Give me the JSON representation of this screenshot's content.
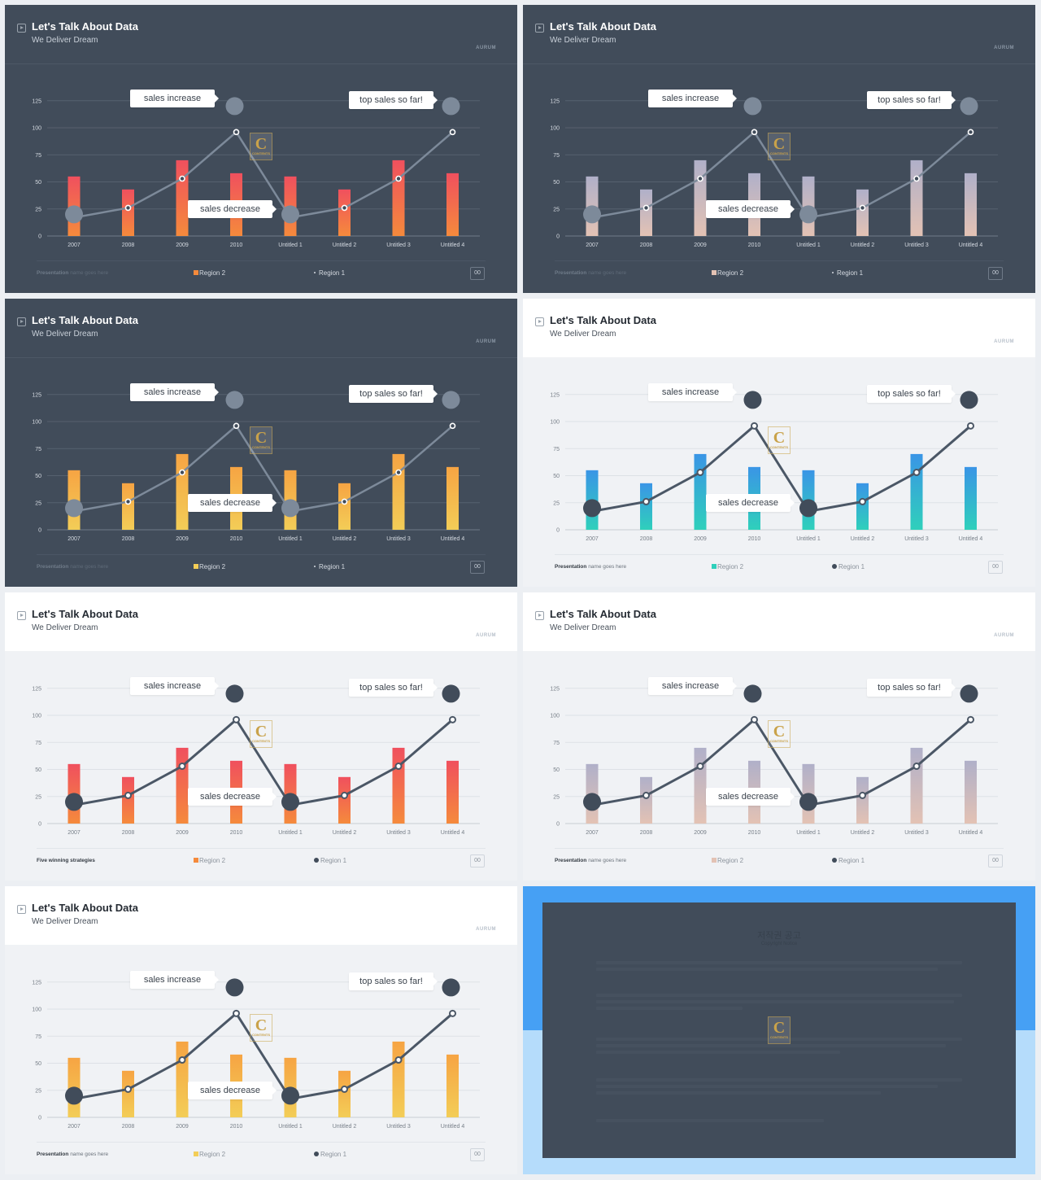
{
  "deck": {
    "title": "Let's Talk About Data",
    "subtitle": "We Deliver Dream",
    "brand": "AURUM",
    "logo_letter": "C",
    "logo_text": "CONTENTS",
    "callouts": {
      "increase": "sales increase",
      "top": "top sales so far!",
      "decrease": "sales decrease"
    },
    "legend": {
      "bars": "Region 2",
      "line": "Region 1"
    },
    "footer": {
      "bold": "Presentation",
      "rest": "name goes here",
      "alt_bold": "Five winning strategies"
    },
    "page_number": "00"
  },
  "slides": [
    {
      "theme": "dark",
      "bar_colors": [
        "#f0505e",
        "#f58a3c"
      ]
    },
    {
      "theme": "dark",
      "bar_colors": [
        "#b0b0c9",
        "#e3c2b4"
      ]
    },
    {
      "theme": "dark",
      "bar_colors": [
        "#f6a443",
        "#f3cd57"
      ]
    },
    {
      "theme": "light",
      "bar_colors": [
        "#3a95e6",
        "#2fd0bb"
      ]
    },
    {
      "theme": "light",
      "bar_colors": [
        "#f0505e",
        "#f58a3c"
      ]
    },
    {
      "theme": "light",
      "bar_colors": [
        "#b0b0c9",
        "#e3c2b4"
      ]
    },
    {
      "theme": "light",
      "bar_colors": [
        "#f6a443",
        "#f3cd57"
      ]
    }
  ],
  "notice": {
    "title": "저작권 공고",
    "subtitle": "Copyright Notice"
  },
  "colors": {
    "dark_bg": "#414c5a",
    "light_bg": "#f0f2f5",
    "dark_line": "#7d8a9a",
    "light_line": "#4b5766",
    "notice_blue": "#46a0f4",
    "notice_light": "#b5dcfb"
  },
  "chart_data": {
    "type": "bar",
    "categories": [
      "2007",
      "2008",
      "2009",
      "2010",
      "Untitled 1",
      "Untitled 2",
      "Untitled 3",
      "Untitled 4"
    ],
    "series": [
      {
        "name": "Region 2",
        "type": "bar",
        "values": [
          55,
          43,
          70,
          58,
          55,
          43,
          70,
          58
        ]
      },
      {
        "name": "Region 1",
        "type": "line",
        "values": [
          17,
          26,
          53,
          96,
          17,
          26,
          53,
          96
        ]
      }
    ],
    "markers": [
      {
        "category": "2007",
        "value": 20
      },
      {
        "category": "Untitled 1",
        "value": 20
      },
      {
        "category": "2010",
        "value": 120
      },
      {
        "category": "Untitled 4",
        "value": 120
      }
    ],
    "yticks": [
      0,
      25,
      50,
      75,
      100,
      125
    ],
    "ylim": [
      0,
      125
    ],
    "grid": true,
    "legend_position": "bottom"
  }
}
